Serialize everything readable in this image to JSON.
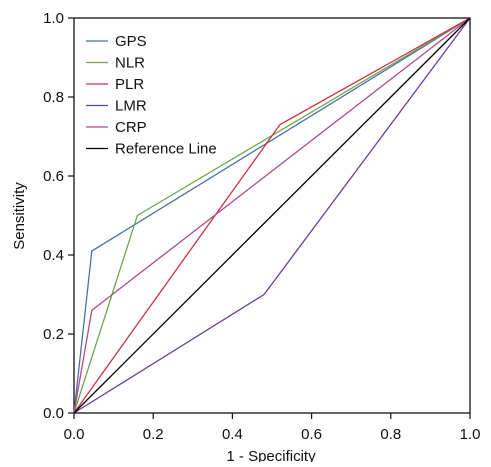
{
  "chart_data": {
    "type": "line",
    "title": "",
    "xlabel": "1 - Specificity",
    "ylabel": "Sensitivity",
    "xlim": [
      0,
      1
    ],
    "ylim": [
      0,
      1
    ],
    "x_ticks": [
      0.0,
      0.2,
      0.4,
      0.6,
      0.8,
      1.0
    ],
    "y_ticks": [
      0.0,
      0.2,
      0.4,
      0.6,
      0.8,
      1.0
    ],
    "x_tick_labels": [
      "0.0",
      "0.2",
      "0.4",
      "0.6",
      "0.8",
      "1.0"
    ],
    "y_tick_labels": [
      "0.0",
      "0.2",
      "0.4",
      "0.6",
      "0.8",
      "1.0"
    ],
    "grid": false,
    "legend_position": "top-left",
    "series": [
      {
        "name": "GPS",
        "color": "#4a6fa5",
        "points": [
          [
            0,
            0
          ],
          [
            0.045,
            0.41
          ],
          [
            1,
            1
          ]
        ]
      },
      {
        "name": "NLR",
        "color": "#6aa84f",
        "points": [
          [
            0,
            0
          ],
          [
            0.16,
            0.5
          ],
          [
            1,
            1
          ]
        ]
      },
      {
        "name": "PLR",
        "color": "#cc3344",
        "points": [
          [
            0,
            0
          ],
          [
            0.52,
            0.73
          ],
          [
            1,
            1
          ]
        ]
      },
      {
        "name": "LMR",
        "color": "#6a3d9a",
        "points": [
          [
            0,
            0
          ],
          [
            0.48,
            0.3
          ],
          [
            1,
            1
          ]
        ]
      },
      {
        "name": "CRP",
        "color": "#b04a8a",
        "points": [
          [
            0,
            0
          ],
          [
            0.045,
            0.26
          ],
          [
            1,
            1
          ]
        ]
      },
      {
        "name": "Reference Line",
        "color": "#000000",
        "points": [
          [
            0,
            0
          ],
          [
            1,
            1
          ]
        ]
      }
    ]
  }
}
